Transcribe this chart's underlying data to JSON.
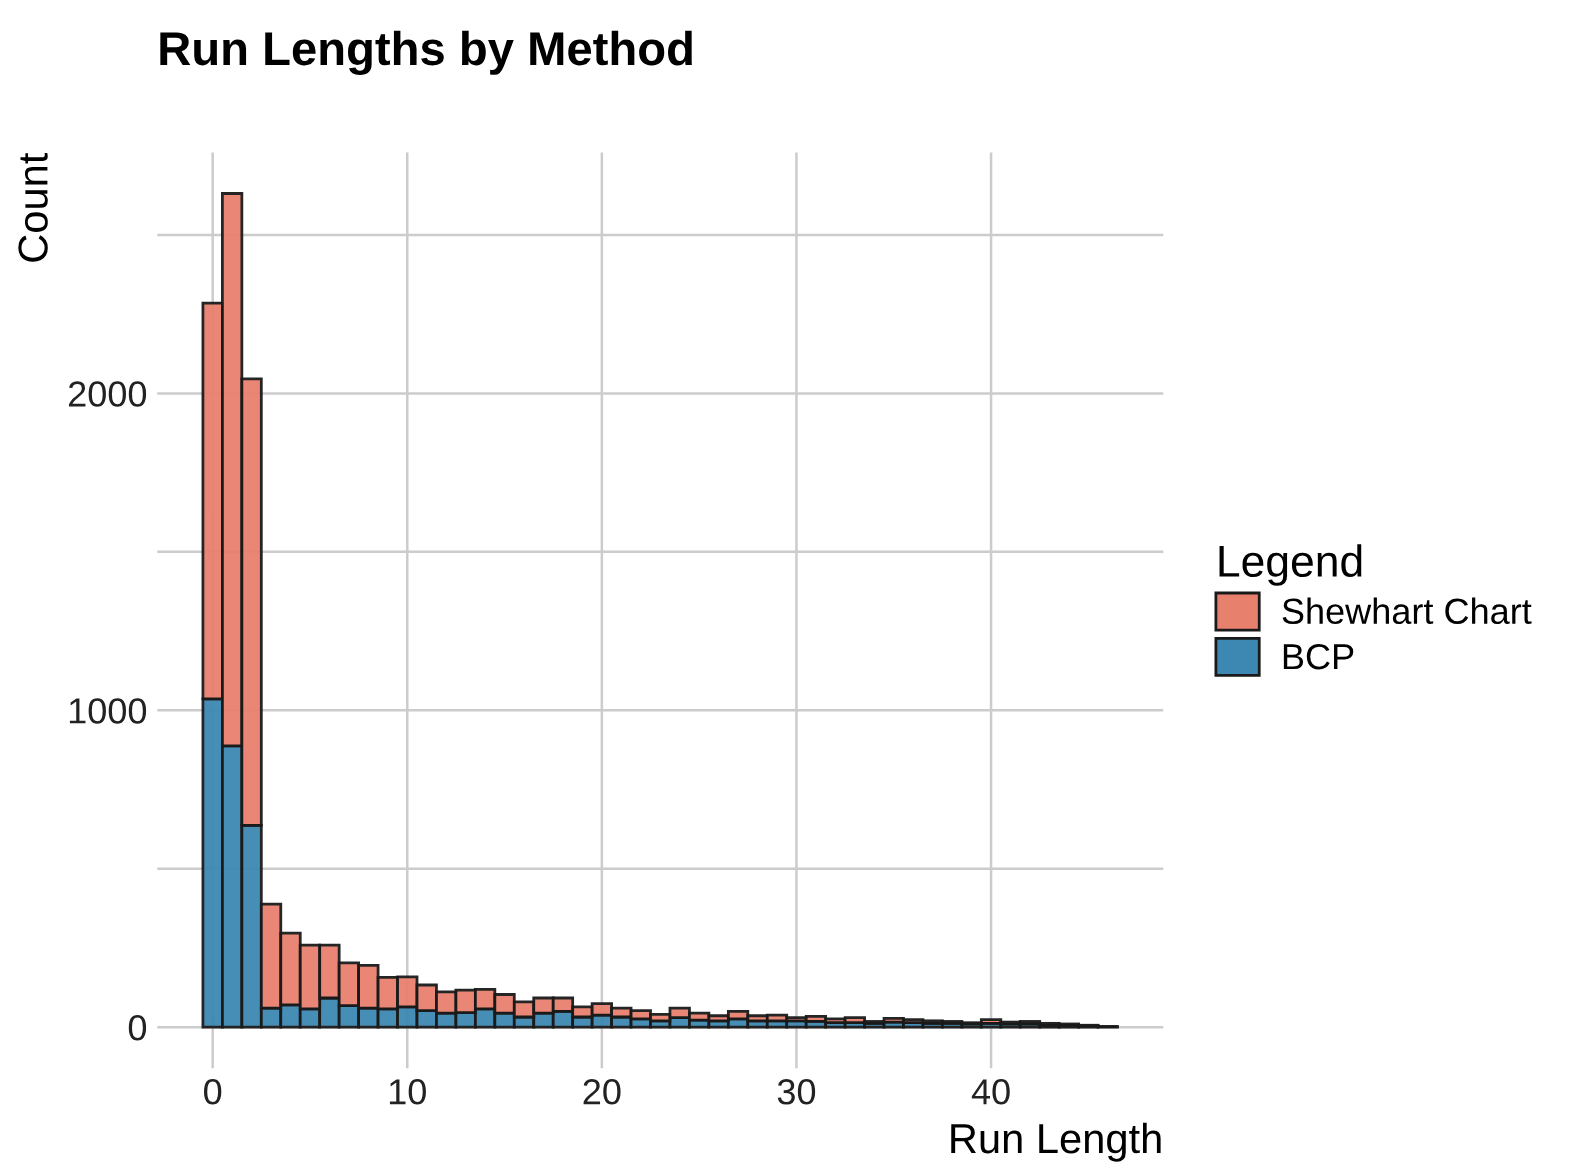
{
  "chart_data": {
    "type": "bar",
    "title": "Run Lengths by Method",
    "xlabel": "Run Length",
    "ylabel": "Count",
    "legend_title": "Legend",
    "x": [
      0,
      1,
      2,
      3,
      4,
      5,
      6,
      7,
      8,
      9,
      10,
      11,
      12,
      13,
      14,
      15,
      16,
      17,
      18,
      19,
      20,
      21,
      22,
      23,
      24,
      25,
      26,
      27,
      28,
      29,
      30,
      31,
      32,
      33,
      34,
      35,
      36,
      37,
      38,
      39,
      40,
      41,
      42,
      43,
      44,
      45,
      46
    ],
    "stacked": true,
    "series": [
      {
        "name": "BCP",
        "color": "#3d88b3",
        "values": [
          1036,
          888,
          637,
          60,
          70,
          58,
          92,
          68,
          60,
          58,
          64,
          52,
          44,
          46,
          58,
          44,
          32,
          44,
          50,
          32,
          38,
          32,
          26,
          20,
          30,
          22,
          20,
          26,
          20,
          20,
          20,
          18,
          14,
          14,
          12,
          16,
          14,
          12,
          12,
          10,
          12,
          10,
          10,
          6,
          6,
          4,
          2
        ]
      },
      {
        "name": "Shewhart Chart",
        "color": "#e8806e",
        "values": [
          1249,
          1743,
          1409,
          328,
          227,
          201,
          167,
          135,
          135,
          99,
          95,
          81,
          67,
          71,
          61,
          59,
          48,
          48,
          42,
          32,
          36,
          28,
          26,
          20,
          30,
          22,
          16,
          24,
          16,
          18,
          10,
          16,
          12,
          16,
          6,
          12,
          10,
          8,
          6,
          4,
          12,
          6,
          8,
          6,
          4,
          2,
          0
        ]
      }
    ],
    "xlim": [
      -2.85,
      48.85
    ],
    "xticks": [
      0,
      10,
      20,
      30,
      40
    ],
    "ylim": [
      -130,
      2760
    ],
    "yticks": [
      0,
      {
        "value": 500,
        "label": null
      },
      1000,
      {
        "value": 1500,
        "label": null
      },
      2000,
      {
        "value": 2500,
        "label": null
      }
    ],
    "grid": true,
    "legend": "right"
  }
}
